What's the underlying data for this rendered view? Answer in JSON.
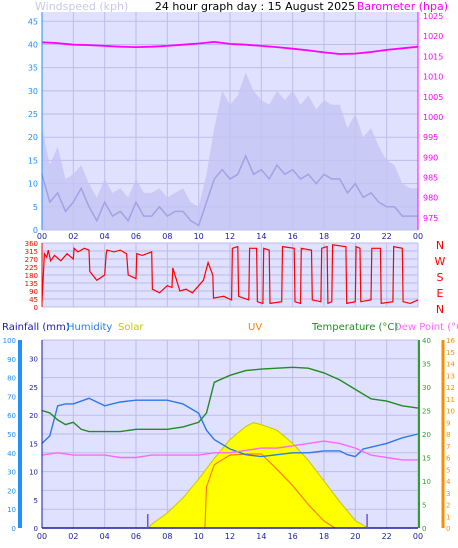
{
  "colors": {
    "plot_bg": "#e0e0ff",
    "grid": "#bdbde8",
    "wind_gust": "#c4c4f4",
    "wind_avg": "#1a1aa6",
    "wind_title": "#c8c8ec",
    "barometer": "#ff00ff",
    "direction": "#ff0000",
    "rain": "#1a1aa6",
    "humidity": "#2a7ae8",
    "solar": "#ffff00",
    "uv": "#ff7f00",
    "temperature": "#228b22",
    "dewpoint": "#ff66ff",
    "axis_left": "#1e90ff",
    "axis_right_green": "#2e9e2e",
    "axis_right_orange": "#ff8c00",
    "title": "#000000"
  },
  "chart_data": [
    {
      "type": "line",
      "title": "24 hour graph day : 15 August 2025",
      "x_ticks": [
        "00",
        "02",
        "04",
        "06",
        "08",
        "10",
        "12",
        "14",
        "16",
        "18",
        "20",
        "22",
        "00"
      ],
      "series": [
        {
          "name": "Windspeed (kph)",
          "role": "wind-avg",
          "axis": "left",
          "x_hours": [
            0.0,
            0.5,
            1.0,
            1.5,
            2.0,
            2.5,
            3.0,
            3.5,
            4.0,
            4.5,
            5.0,
            5.5,
            6.0,
            6.5,
            7.0,
            7.5,
            8.0,
            8.5,
            9.0,
            9.5,
            10.0,
            10.5,
            11.0,
            11.5,
            12.0,
            12.5,
            13.0,
            13.5,
            14.0,
            14.5,
            15.0,
            15.5,
            16.0,
            16.5,
            17.0,
            17.5,
            18.0,
            18.5,
            19.0,
            19.5,
            20.0,
            20.5,
            21.0,
            21.5,
            22.0,
            22.5,
            23.0,
            23.5,
            24.0
          ],
          "values": [
            12,
            6,
            8,
            4,
            6,
            9,
            5,
            2,
            6,
            3,
            4,
            2,
            6,
            3,
            3,
            5,
            3,
            4,
            4,
            2,
            1,
            6,
            11,
            13,
            11,
            12,
            16,
            12,
            13,
            11,
            14,
            12,
            13,
            11,
            12,
            10,
            12,
            11,
            11,
            8,
            10,
            7,
            8,
            6,
            5,
            5,
            3,
            3,
            3
          ]
        },
        {
          "name": "Wind gust",
          "role": "wind-gust",
          "axis": "left",
          "x_hours": [
            0.0,
            0.5,
            1.0,
            1.5,
            2.0,
            2.5,
            3.0,
            3.5,
            4.0,
            4.5,
            5.0,
            5.5,
            6.0,
            6.5,
            7.0,
            7.5,
            8.0,
            8.5,
            9.0,
            9.5,
            10.0,
            10.5,
            11.0,
            11.5,
            12.0,
            12.5,
            13.0,
            13.5,
            14.0,
            14.5,
            15.0,
            15.5,
            16.0,
            16.5,
            17.0,
            17.5,
            18.0,
            18.5,
            19.0,
            19.5,
            20.0,
            20.5,
            21.0,
            21.5,
            22.0,
            22.5,
            23.0,
            23.5,
            24.0
          ],
          "values": [
            22,
            14,
            18,
            11,
            12,
            14,
            10,
            7,
            11,
            8,
            9,
            7,
            11,
            8,
            8,
            9,
            7,
            8,
            9,
            6,
            5,
            12,
            22,
            30,
            27,
            29,
            34,
            30,
            28,
            27,
            30,
            28,
            30,
            27,
            29,
            26,
            28,
            27,
            27,
            22,
            25,
            20,
            22,
            18,
            15,
            14,
            10,
            9,
            9
          ]
        },
        {
          "name": "Barometer (hpa)",
          "role": "barometer",
          "axis": "right",
          "x_hours": [
            0,
            1,
            2,
            3,
            4,
            5,
            6,
            7,
            8,
            9,
            10,
            11,
            12,
            13,
            14,
            15,
            16,
            17,
            18,
            19,
            20,
            21,
            22,
            23,
            24
          ],
          "values": [
            1018.5,
            1018.3,
            1017.9,
            1017.8,
            1017.6,
            1017.4,
            1017.3,
            1017.4,
            1017.6,
            1017.9,
            1018.2,
            1018.6,
            1018.1,
            1017.9,
            1017.6,
            1017.3,
            1016.9,
            1016.5,
            1016.0,
            1015.6,
            1015.7,
            1016.1,
            1016.6,
            1017.0,
            1017.4
          ]
        }
      ],
      "left_axis": {
        "label": "Windspeed (kph)",
        "ticks": [
          0,
          5,
          10,
          15,
          20,
          25,
          30,
          35,
          40,
          45
        ],
        "ylim": [
          0,
          47
        ]
      },
      "right_axis": {
        "label": "Barometer (hpa)",
        "ticks": [
          975,
          980,
          985,
          990,
          995,
          1000,
          1005,
          1010,
          1015,
          1020,
          1025
        ],
        "ylim": [
          972,
          1026
        ]
      }
    },
    {
      "type": "line",
      "title": "",
      "series": [
        {
          "name": "Wind direction",
          "role": "direction",
          "x_hours": [
            0.0,
            0.15,
            0.3,
            0.4,
            0.55,
            0.8,
            1.2,
            1.6,
            2.0,
            2.05,
            2.3,
            2.7,
            3.0,
            3.05,
            3.5,
            4.0,
            4.1,
            4.15,
            4.6,
            5.0,
            5.4,
            5.5,
            6.0,
            6.05,
            6.4,
            7.0,
            7.05,
            7.5,
            8.0,
            8.3,
            8.35,
            8.8,
            9.2,
            9.6,
            10.0,
            10.3,
            10.6,
            10.9,
            10.95,
            11.6,
            12.1,
            12.15,
            12.5,
            12.55,
            13.2,
            13.25,
            13.7,
            13.75,
            14.1,
            14.15,
            14.5,
            14.55,
            15.3,
            15.35,
            16.1,
            16.15,
            16.5,
            16.55,
            17.2,
            17.25,
            17.8,
            17.85,
            18.2,
            18.25,
            18.5,
            18.55,
            19.4,
            19.45,
            20.0,
            20.05,
            20.3,
            20.35,
            21.0,
            21.05,
            21.6,
            21.65,
            22.4,
            22.45,
            23.0,
            23.05,
            23.5,
            24.0
          ],
          "values": [
            30,
            300,
            280,
            320,
            260,
            290,
            260,
            300,
            270,
            330,
            310,
            330,
            320,
            200,
            150,
            180,
            300,
            320,
            310,
            320,
            300,
            180,
            160,
            300,
            290,
            310,
            100,
            80,
            120,
            110,
            220,
            90,
            100,
            80,
            120,
            150,
            250,
            180,
            50,
            60,
            40,
            330,
            340,
            60,
            40,
            330,
            330,
            30,
            20,
            330,
            320,
            20,
            30,
            340,
            330,
            30,
            20,
            330,
            320,
            40,
            30,
            330,
            340,
            20,
            30,
            350,
            340,
            20,
            30,
            340,
            330,
            30,
            40,
            330,
            330,
            20,
            30,
            340,
            330,
            30,
            20,
            40
          ]
        }
      ],
      "left_axis": {
        "ticks": [
          0,
          45,
          90,
          135,
          180,
          225,
          270,
          315,
          360
        ],
        "ylim": [
          0,
          360
        ]
      },
      "right_labels": [
        "N",
        "W",
        "S",
        "E",
        "N"
      ]
    },
    {
      "type": "line",
      "title": "",
      "x_ticks": [
        "00",
        "02",
        "04",
        "06",
        "08",
        "10",
        "12",
        "14",
        "16",
        "18",
        "20",
        "22",
        "00"
      ],
      "legend": [
        "Rainfall (mm)",
        "Humidity",
        "Solar",
        "UV",
        "Temperature (°C)",
        "Dew Point (°C)"
      ],
      "series": [
        {
          "name": "Humidity",
          "role": "humidity",
          "axis": "left",
          "x_hours": [
            0,
            0.5,
            1,
            1.5,
            2,
            3,
            4,
            5,
            6,
            7,
            8,
            9,
            10,
            10.5,
            11,
            12,
            13,
            14,
            15,
            16,
            17,
            18,
            19,
            19.5,
            20,
            20.5,
            21,
            22,
            23,
            24
          ],
          "values": [
            45,
            49,
            65,
            66,
            66,
            69,
            65,
            67,
            68,
            68,
            68,
            66,
            61,
            52,
            47,
            42,
            39,
            38,
            39,
            40,
            40,
            41,
            41,
            39,
            38,
            42,
            43,
            45,
            48,
            50
          ]
        },
        {
          "name": "Temperature (°C)",
          "role": "temperature",
          "axis": "right",
          "x_hours": [
            0,
            0.5,
            1,
            1.5,
            2,
            2.5,
            3,
            4,
            5,
            6,
            7,
            8,
            9,
            10,
            10.5,
            11,
            12,
            13,
            14,
            15,
            16,
            17,
            18,
            19,
            20,
            21,
            22,
            23,
            24
          ],
          "values": [
            25,
            24.5,
            23,
            22,
            22.5,
            21,
            20.5,
            20.5,
            20.5,
            21,
            21,
            21,
            21.5,
            22.5,
            24.5,
            31,
            32.5,
            33.5,
            33.8,
            34,
            34.2,
            34,
            33,
            31.5,
            29.5,
            27.5,
            27,
            26,
            25.5
          ]
        },
        {
          "name": "Dew Point (°C)",
          "role": "dewpoint",
          "axis": "right",
          "x_hours": [
            0,
            1,
            2,
            3,
            4,
            5,
            6,
            7,
            8,
            9,
            10,
            11,
            12,
            13,
            14,
            15,
            16,
            17,
            18,
            19,
            20,
            21,
            22,
            23,
            24
          ],
          "values": [
            15.5,
            16,
            15.5,
            15.5,
            15.5,
            15,
            15,
            15.5,
            15.5,
            15.5,
            15.5,
            16,
            16,
            16.5,
            17,
            17,
            17.5,
            18,
            18.5,
            18,
            17,
            15.5,
            15,
            14.5,
            14.5
          ]
        },
        {
          "name": "Solar",
          "role": "solar",
          "axis": "left",
          "x_hours": [
            6.8,
            7,
            8,
            9,
            10,
            11,
            12,
            13,
            13.5,
            14,
            15,
            16,
            17,
            18,
            19,
            20,
            20.8
          ],
          "values": [
            0,
            2,
            8,
            16,
            26,
            37,
            47,
            54,
            56,
            55,
            52,
            45,
            36,
            25,
            14,
            4,
            0
          ]
        },
        {
          "name": "UV",
          "role": "uv",
          "axis": "right-uv",
          "x_hours": [
            10.4,
            10.5,
            11,
            12,
            13,
            14,
            15,
            16,
            17,
            18,
            18.7
          ],
          "values": [
            0,
            3.5,
            5.4,
            6.2,
            6.3,
            6.3,
            5,
            3.6,
            2,
            0.6,
            0
          ]
        },
        {
          "name": "Rainfall (mm)",
          "role": "rain",
          "axis": "left",
          "x_hours": [
            0,
            24
          ],
          "values": [
            0,
            0
          ]
        }
      ],
      "left_axis": {
        "ticks": [
          0,
          10,
          20,
          30,
          40,
          50,
          60,
          70,
          80,
          90,
          100
        ],
        "ylim": [
          0,
          100
        ]
      },
      "left_axis_rain": {
        "ticks": [
          0,
          5,
          10,
          15,
          20,
          25,
          30
        ],
        "ylim": [
          0,
          33.3
        ]
      },
      "right_axis_temp": {
        "ticks": [
          0,
          5,
          10,
          15,
          20,
          25,
          30,
          35,
          40
        ],
        "ylim": [
          0,
          40
        ]
      },
      "right_axis_uv": {
        "ticks": [
          0,
          1,
          2,
          3,
          4,
          5,
          6,
          7,
          8,
          9,
          10,
          11,
          12,
          13,
          14,
          15,
          16
        ],
        "ylim": [
          0,
          16
        ]
      },
      "markers": [
        {
          "role": "sunrise",
          "x_hour": 6.75
        },
        {
          "role": "sunset",
          "x_hour": 20.75
        }
      ]
    }
  ]
}
